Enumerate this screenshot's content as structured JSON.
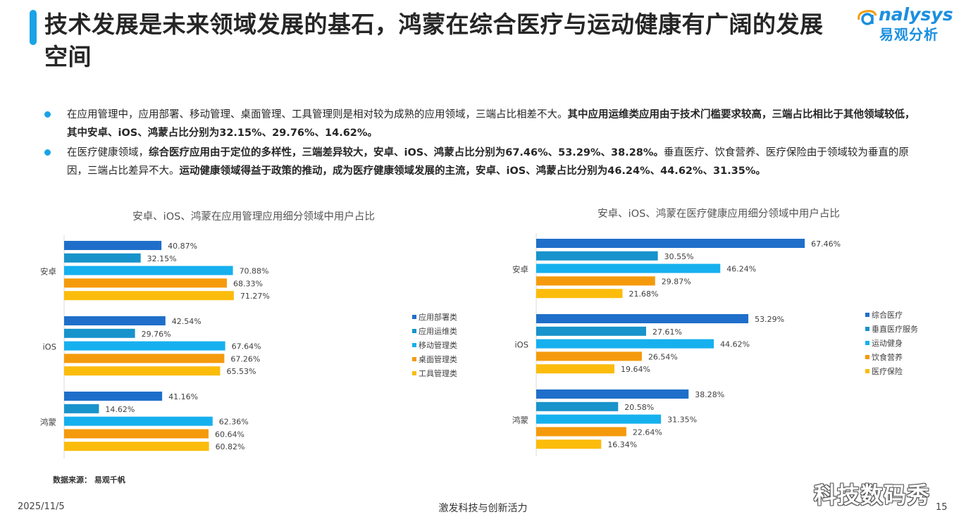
{
  "header": {
    "title": "技术发展是未来领域发展的基石，鸿蒙在综合医疗与运动健康有广阔的发展空间",
    "logo_en": "nalysys",
    "logo_cn": "易观分析"
  },
  "bullets": [
    {
      "normal": "在应用管理中，应用部署、移动管理、桌面管理、工具管理则是相对较为成熟的应用领域，三端占比相差不大。",
      "bold": "其中应用运维类应用由于技术门槛要求较高，三端占比相比于其他领域较低，其中安卓、iOS、鸿蒙占比分别为32.15%、29.76%、14.62%。",
      "tail": ""
    },
    {
      "normal": "在医疗健康领域，",
      "bold": "综合医疗应用由于定位的多样性，三端差异较大，安卓、iOS、鸿蒙占比分别为67.46%、53.29%、38.28%。",
      "tail": "垂直医疗、饮食营养、医疗保险由于领域较为垂直的原因，三端占比差异不大。",
      "bold2": "运动健康领域得益于政策的推动，成为医疗健康领域发展的主流，安卓、iOS、鸿蒙占比分别为46.24%、44.62%、31.35%。"
    }
  ],
  "chart_data": [
    {
      "type": "bar",
      "orientation": "horizontal",
      "title": "安卓、iOS、鸿蒙在应用管理应用细分领域中用户占比",
      "categories": [
        "安卓",
        "iOS",
        "鸿蒙"
      ],
      "series": [
        {
          "name": "应用部署类",
          "color": "#1f6fca",
          "values": [
            40.87,
            42.54,
            41.16
          ]
        },
        {
          "name": "应用运维类",
          "color": "#1893cb",
          "values": [
            32.15,
            29.76,
            14.62
          ]
        },
        {
          "name": "移动管理类",
          "color": "#16b0ef",
          "values": [
            70.88,
            67.64,
            62.36
          ]
        },
        {
          "name": "桌面管理类",
          "color": "#f59a0c",
          "values": [
            68.33,
            67.26,
            60.64
          ]
        },
        {
          "name": "工具管理类",
          "color": "#fbbc0c",
          "values": [
            71.27,
            65.53,
            60.82
          ]
        }
      ],
      "value_suffix": "%",
      "xlim": [
        0,
        100
      ],
      "legend": "right"
    },
    {
      "type": "bar",
      "orientation": "horizontal",
      "title": "安卓、iOS、鸿蒙在医疗健康应用细分领域中用户占比",
      "categories": [
        "安卓",
        "iOS",
        "鸿蒙"
      ],
      "series": [
        {
          "name": "综合医疗",
          "color": "#1f6fca",
          "values": [
            67.46,
            53.29,
            38.28
          ]
        },
        {
          "name": "垂直医疗服务",
          "color": "#1893cb",
          "values": [
            30.55,
            27.61,
            20.58
          ]
        },
        {
          "name": "运动健身",
          "color": "#16b0ef",
          "values": [
            46.24,
            44.62,
            31.35
          ]
        },
        {
          "name": "饮食营养",
          "color": "#f59a0c",
          "values": [
            29.87,
            26.54,
            22.64
          ]
        },
        {
          "name": "医疗保险",
          "color": "#fbbc0c",
          "values": [
            21.68,
            19.64,
            16.34
          ]
        }
      ],
      "value_suffix": "%",
      "xlim": [
        0,
        100
      ],
      "legend": "right"
    }
  ],
  "source": "数据来源：  易观千帆",
  "footer": {
    "date": "2025/11/5",
    "slogan": "激发科技与创新活力",
    "page": "15"
  },
  "watermark": "科技数码秀"
}
